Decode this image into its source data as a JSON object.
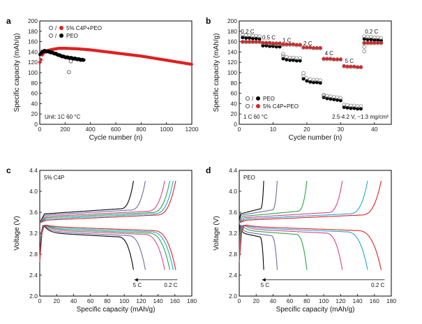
{
  "chart_data": [
    {
      "id": "a",
      "type": "scatter",
      "panel_label": "a",
      "xlabel": "Cycle number (n)",
      "ylabel": "Specific capacity (mAh/g)",
      "xlim": [
        0,
        1200
      ],
      "ylim": [
        0,
        200
      ],
      "xticks": [
        0,
        200,
        400,
        600,
        800,
        1000,
        1200
      ],
      "yticks": [
        0,
        20,
        40,
        60,
        80,
        100,
        120,
        140,
        160,
        180,
        200
      ],
      "legend": [
        {
          "label": "5% C4P+PEO",
          "sep": "/",
          "color": "#e02020"
        },
        {
          "label": "PEO",
          "sep": "/",
          "color": "#000000"
        }
      ],
      "annotation": "Unit: 1C  60 °C",
      "series": [
        {
          "name": "5% C4P+PEO",
          "color": "#e02020",
          "x": [
            5,
            20,
            50,
            100,
            150,
            200,
            300,
            400,
            500,
            600,
            700,
            800,
            900,
            1000,
            1100,
            1200
          ],
          "y": [
            120,
            135,
            142,
            145,
            147,
            147,
            146,
            144,
            141,
            138,
            135,
            132,
            128,
            124,
            120,
            116
          ]
        },
        {
          "name": "PEO",
          "color": "#000000",
          "x": [
            5,
            20,
            40,
            80,
            120,
            160,
            200,
            250,
            300,
            350
          ],
          "y": [
            135,
            141,
            142,
            140,
            137,
            133,
            130,
            128,
            126,
            124
          ]
        }
      ],
      "outliers": [
        {
          "name": "PEO",
          "x": 230,
          "y": 101
        },
        {
          "name": "5% C4P+PEO",
          "x": 245,
          "y": 122
        }
      ]
    },
    {
      "id": "b",
      "type": "scatter",
      "panel_label": "b",
      "xlabel": "Cycle number (n)",
      "ylabel": "Specific capacity (mAh/g)",
      "xlim": [
        0,
        45
      ],
      "ylim": [
        0,
        200
      ],
      "xticks": [
        0,
        10,
        20,
        30,
        40
      ],
      "yticks": [
        0,
        20,
        40,
        60,
        80,
        100,
        120,
        140,
        160,
        180,
        200
      ],
      "legend": [
        {
          "label": "PEO",
          "sep": "/",
          "color": "#000000"
        },
        {
          "label": "5% C4P+PEO",
          "sep": "/",
          "color": "#e02020"
        }
      ],
      "annotation_left": "1 C  60 °C",
      "annotation_right": "2.5-4.2 V, ~1.3 mg/cm²",
      "rate_labels": [
        {
          "text": "0.2 C",
          "x": 0.5,
          "y": 176
        },
        {
          "text": "0.5 C",
          "x": 6.8,
          "y": 164
        },
        {
          "text": "1 C",
          "x": 12.8,
          "y": 159
        },
        {
          "text": "2 C",
          "x": 19.0,
          "y": 153
        },
        {
          "text": "4 C",
          "x": 25.3,
          "y": 134
        },
        {
          "text": "5 C",
          "x": 31.3,
          "y": 119
        },
        {
          "text": "0.2 C",
          "x": 37.2,
          "y": 176
        }
      ],
      "series": [
        {
          "name": "PEO",
          "color": "#000000",
          "x": [
            1,
            2,
            3,
            4,
            5,
            6,
            7,
            8,
            9,
            10,
            11,
            12,
            13,
            14,
            15,
            16,
            17,
            18,
            19,
            20,
            21,
            22,
            23,
            24,
            25,
            26,
            27,
            28,
            29,
            30,
            31,
            32,
            33,
            34,
            35,
            36,
            37,
            38,
            39,
            40,
            41,
            42
          ],
          "y": [
            168,
            167,
            167,
            166,
            166,
            165,
            152,
            152,
            151,
            151,
            150,
            150,
            127,
            125,
            124,
            124,
            123,
            123,
            88,
            84,
            82,
            81,
            81,
            80,
            52,
            50,
            49,
            48,
            47,
            46,
            33,
            32,
            31,
            31,
            30,
            30,
            165,
            164,
            164,
            163,
            163,
            162
          ]
        },
        {
          "name": "5% C4P+PEO",
          "color": "#e02020",
          "x": [
            1,
            2,
            3,
            4,
            5,
            6,
            7,
            8,
            9,
            10,
            11,
            12,
            13,
            14,
            15,
            16,
            17,
            18,
            19,
            20,
            21,
            22,
            23,
            24,
            25,
            26,
            27,
            28,
            29,
            30,
            31,
            32,
            33,
            34,
            35,
            36,
            37,
            38,
            39,
            40,
            41,
            42
          ],
          "y": [
            160,
            160,
            160,
            160,
            160,
            160,
            158,
            158,
            158,
            157,
            157,
            157,
            155,
            155,
            155,
            155,
            154,
            154,
            149,
            149,
            149,
            148,
            148,
            148,
            127,
            127,
            127,
            126,
            126,
            126,
            113,
            112,
            112,
            112,
            111,
            111,
            158,
            158,
            158,
            158,
            158,
            158
          ]
        }
      ]
    },
    {
      "id": "c",
      "type": "line",
      "panel_label": "c",
      "title": "5% C4P",
      "xlabel": "Specific capacity (mAh/g)",
      "ylabel": "Voltage (V)",
      "xlim": [
        0,
        180
      ],
      "ylim": [
        2.0,
        4.4
      ],
      "xticks": [
        0,
        20,
        40,
        60,
        80,
        100,
        120,
        140,
        160,
        180
      ],
      "yticks": [
        2.0,
        2.4,
        2.8,
        3.2,
        3.6,
        4.0,
        4.4
      ],
      "rate_arrow": {
        "from_label": "5 C",
        "to_label": "0.2 C",
        "y": 2.31,
        "x_from": 112,
        "x_to": 163
      },
      "curves": [
        {
          "rate": "5 C",
          "color": "#000000",
          "qmax": 111
        },
        {
          "rate": "4 C",
          "color": "#6a6aa6",
          "qmax": 125
        },
        {
          "rate": "2 C",
          "color": "#e0408a",
          "qmax": 148
        },
        {
          "rate": "1 C",
          "color": "#22aa44",
          "qmax": 154
        },
        {
          "rate": "0.5 C",
          "color": "#1aa8d6",
          "qmax": 158
        },
        {
          "rate": "0.2 C",
          "color": "#e02020",
          "qmax": 161
        }
      ]
    },
    {
      "id": "d",
      "type": "line",
      "panel_label": "d",
      "title": "PEO",
      "xlabel": "Specific capacity (mAh/g)",
      "ylabel": "Voltage (V)",
      "xlim": [
        0,
        180
      ],
      "ylim": [
        2.0,
        4.4
      ],
      "xticks": [
        0,
        20,
        40,
        60,
        80,
        100,
        120,
        140,
        160,
        180
      ],
      "yticks": [
        2.0,
        2.4,
        2.8,
        3.2,
        3.6,
        4.0,
        4.4
      ],
      "rate_arrow": {
        "from_label": "5 C",
        "to_label": "0.2 C",
        "y": 2.31,
        "x_from": 27,
        "x_to": 172
      },
      "curves": [
        {
          "rate": "5 C",
          "color": "#000000",
          "qmax": 29
        },
        {
          "rate": "4 C",
          "color": "#6a6aa6",
          "qmax": 45
        },
        {
          "rate": "2 C",
          "color": "#22aa44",
          "qmax": 80
        },
        {
          "rate": "1 C",
          "color": "#e0408a",
          "qmax": 122
        },
        {
          "rate": "0.5 C",
          "color": "#1aa8d6",
          "qmax": 152
        },
        {
          "rate": "0.2 C",
          "color": "#e02020",
          "qmax": 168
        }
      ]
    }
  ]
}
